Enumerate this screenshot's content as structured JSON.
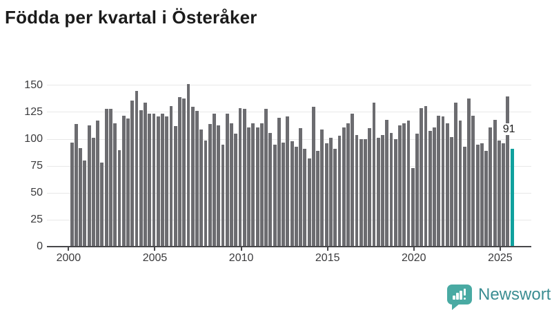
{
  "title": "Födda per kvartal i Österåker",
  "annotation": "91",
  "logo": {
    "text": "Newsworthy"
  },
  "colors": {
    "bar": "#6c6c70",
    "highlight": "#10a19e",
    "grid": "#e8e8e8",
    "axis": "#47474a",
    "tick_text": "#3a3a3c",
    "title_text": "#1b1b1b",
    "annotation_text": "#1c1c1c",
    "logo_bubble": "#49aaa3",
    "logo_text": "#3b8d92"
  },
  "chart_data": {
    "type": "bar",
    "title": "Födda per kvartal i Österåker",
    "frequency": "quarterly",
    "period_start": "2000 Q1",
    "period_end": "2025 Q3",
    "values": [
      97,
      114,
      92,
      80,
      113,
      101,
      117,
      78,
      128,
      128,
      115,
      90,
      122,
      119,
      136,
      145,
      127,
      134,
      124,
      124,
      121,
      124,
      121,
      131,
      112,
      139,
      138,
      151,
      130,
      126,
      109,
      99,
      114,
      124,
      113,
      95,
      124,
      115,
      105,
      129,
      128,
      111,
      115,
      111,
      115,
      128,
      106,
      95,
      120,
      97,
      121,
      98,
      93,
      110,
      91,
      82,
      130,
      89,
      109,
      96,
      101,
      91,
      103,
      111,
      115,
      124,
      104,
      100,
      100,
      110,
      134,
      101,
      104,
      118,
      106,
      100,
      113,
      115,
      117,
      73,
      105,
      129,
      131,
      108,
      111,
      122,
      121,
      115,
      102,
      134,
      117,
      93,
      138,
      122,
      95,
      96,
      89,
      111,
      118,
      99,
      96,
      140,
      91
    ],
    "highlight_last": true,
    "highlight_value": 91,
    "highlight_label": "91",
    "ylim": [
      0,
      160
    ],
    "yticks": [
      0,
      25,
      50,
      75,
      100,
      125,
      150
    ],
    "xticks": [
      {
        "label": "2000",
        "index": 0
      },
      {
        "label": "2005",
        "index": 20
      },
      {
        "label": "2010",
        "index": 40
      },
      {
        "label": "2015",
        "index": 60
      },
      {
        "label": "2020",
        "index": 80
      },
      {
        "label": "2025",
        "index": 100
      }
    ],
    "xlabel": "",
    "ylabel": "",
    "grid": true,
    "legend": false
  }
}
